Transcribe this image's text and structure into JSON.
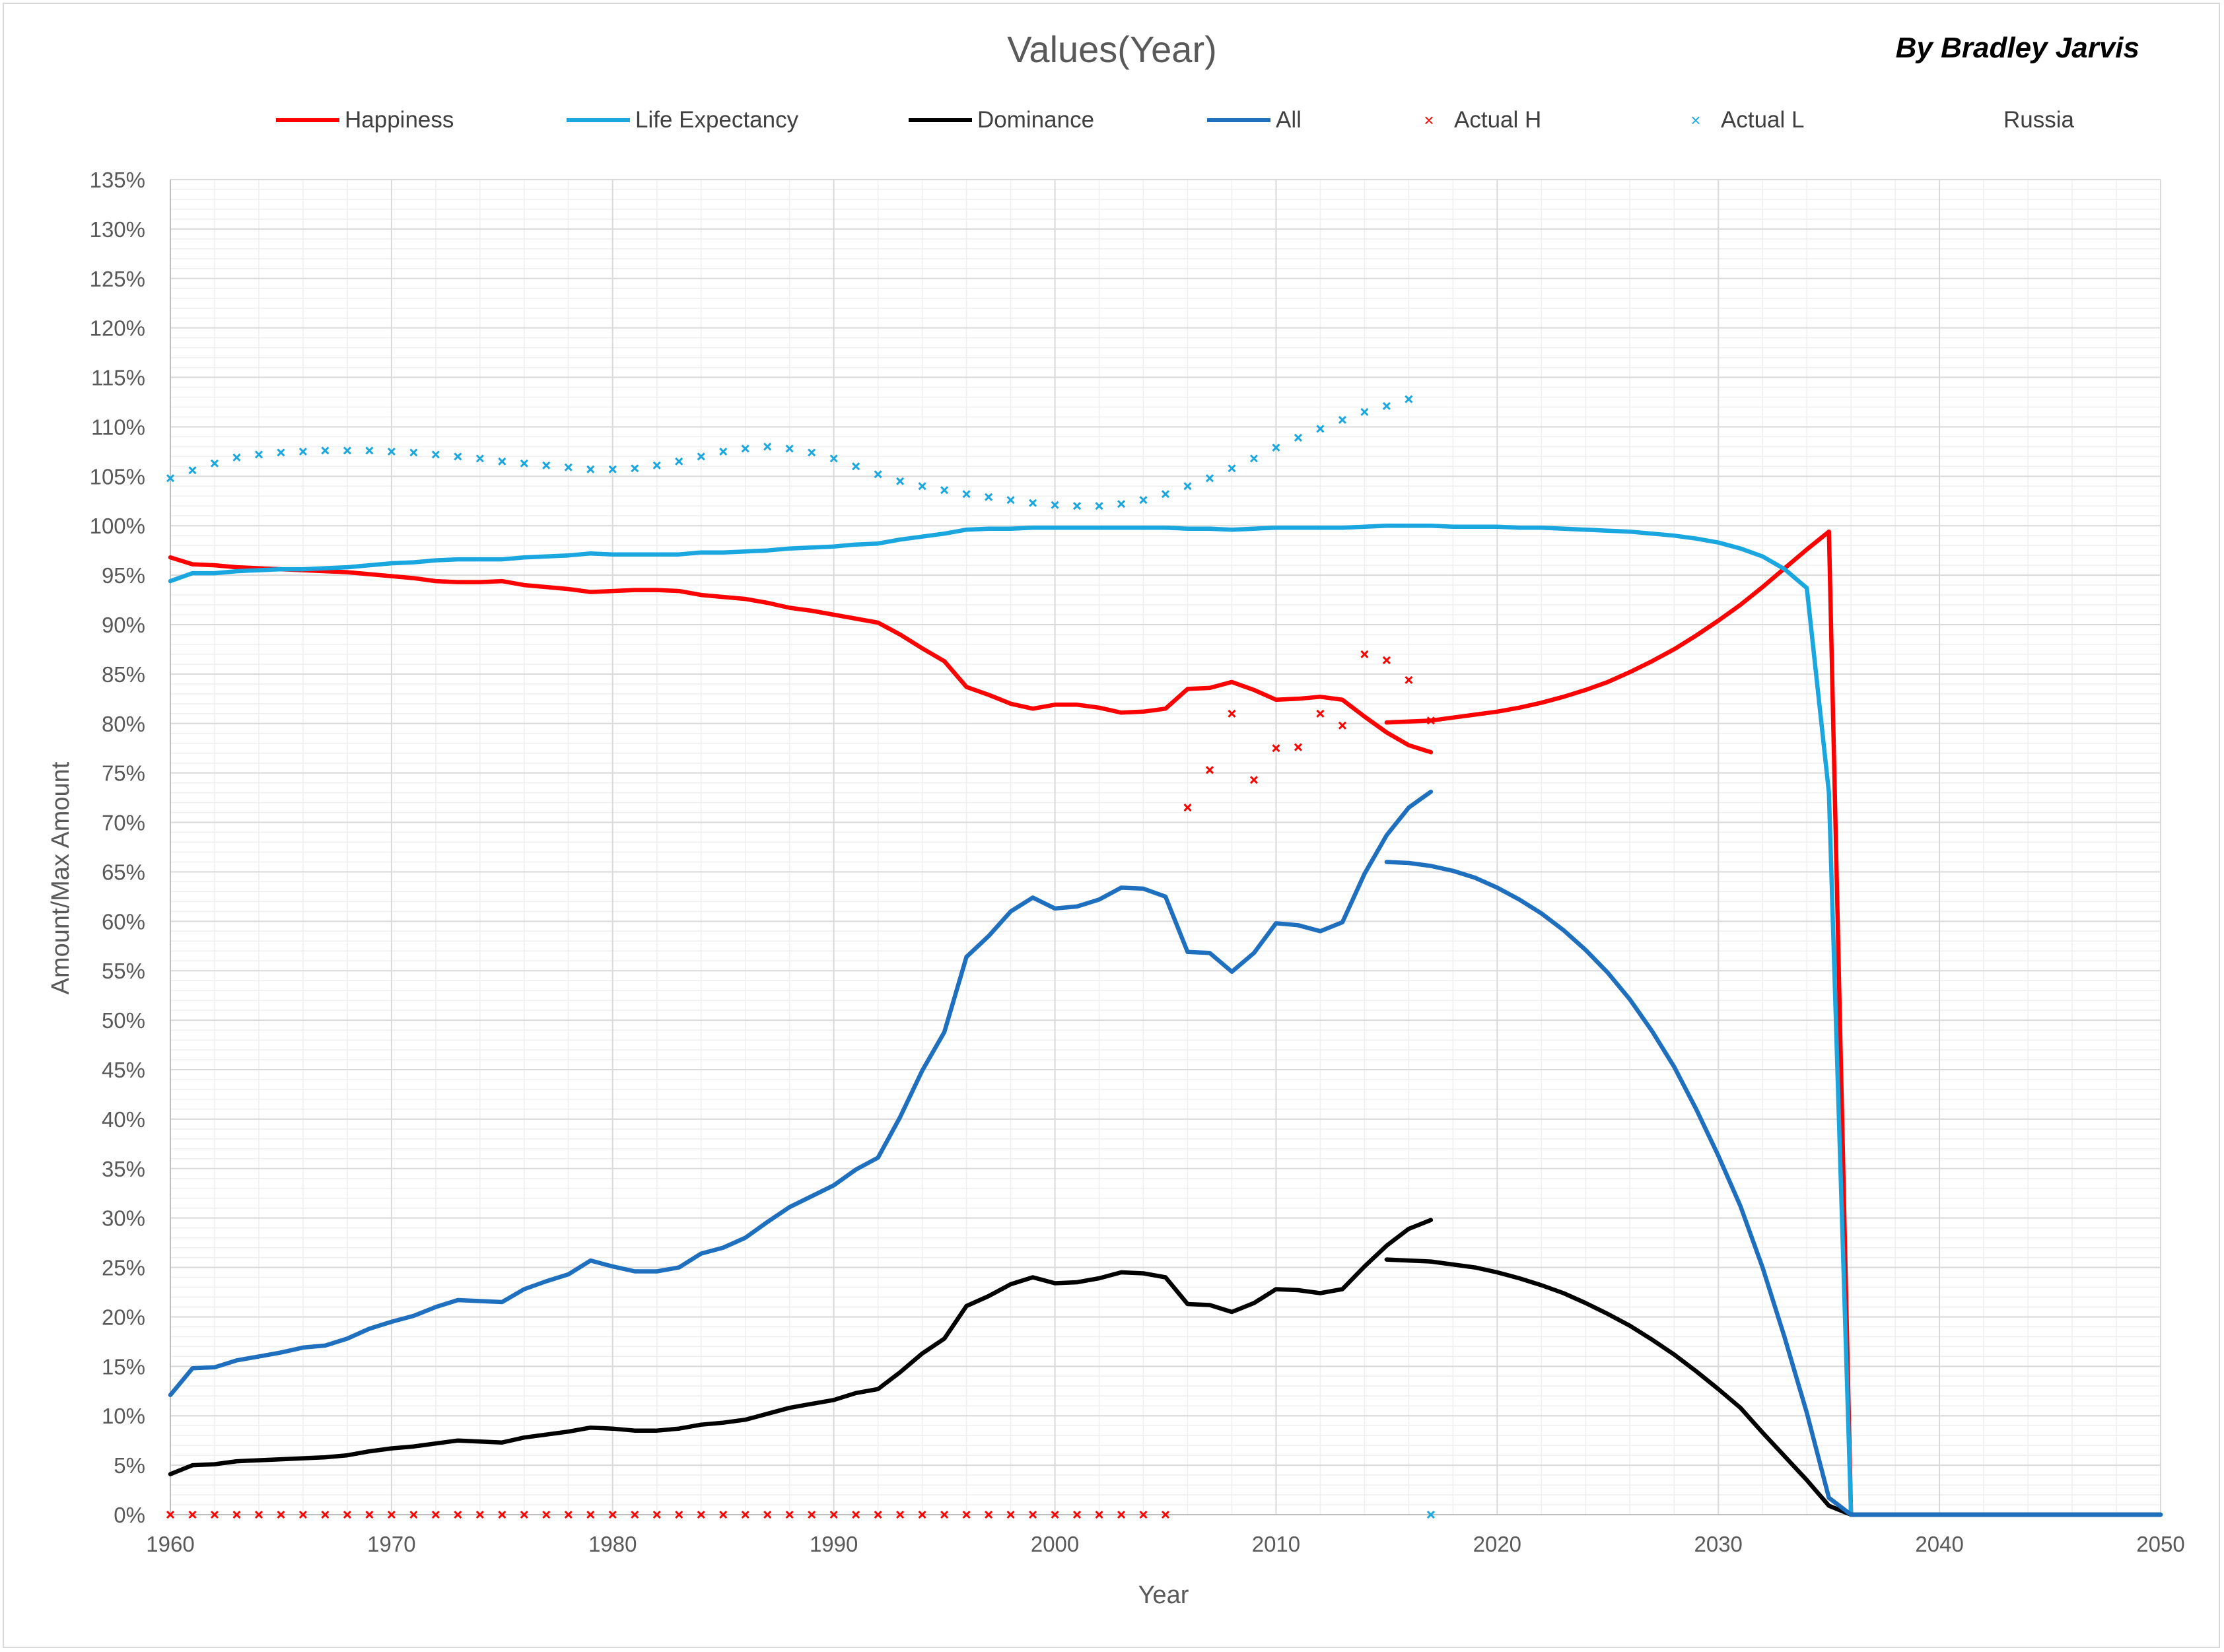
{
  "author": "By Bradley Jarvis",
  "chart_data": {
    "type": "line",
    "title": "Values(Year)",
    "xlabel": "Year",
    "ylabel": "Amount/Max Amount",
    "xlim": [
      1960,
      2050
    ],
    "ylim": [
      0,
      135
    ],
    "y_unit": "%",
    "xticks": [
      1960,
      1970,
      1980,
      1990,
      2000,
      2010,
      2020,
      2030,
      2040,
      2050
    ],
    "yticks": [
      0,
      5,
      10,
      15,
      20,
      25,
      30,
      35,
      40,
      45,
      50,
      55,
      60,
      65,
      70,
      75,
      80,
      85,
      90,
      95,
      100,
      105,
      110,
      115,
      120,
      125,
      130,
      135
    ],
    "grid": true,
    "legend_position": "top",
    "colors": {
      "happiness": "#ff0000",
      "life": "#1aa7e0",
      "dominance": "#000000",
      "all": "#1f6fbf"
    },
    "legend": [
      {
        "label": "Happiness",
        "kind": "line",
        "color": "#ff0000"
      },
      {
        "label": "Life Expectancy",
        "kind": "line",
        "color": "#1aa7e0"
      },
      {
        "label": "Dominance",
        "kind": "line",
        "color": "#000000"
      },
      {
        "label": "All",
        "kind": "line",
        "color": "#1f6fbf"
      },
      {
        "label": "Actual H",
        "kind": "marker",
        "color": "#ff0000"
      },
      {
        "label": "Actual L",
        "kind": "marker",
        "color": "#1aa7e0"
      },
      {
        "label": "Russia",
        "kind": "none",
        "color": "#ffffff"
      }
    ],
    "series": [
      {
        "name": "Happiness",
        "kind": "line",
        "color": "#ff0000",
        "x": [
          1960,
          1961,
          1962,
          1963,
          1964,
          1965,
          1966,
          1967,
          1968,
          1969,
          1970,
          1971,
          1972,
          1973,
          1974,
          1975,
          1976,
          1977,
          1978,
          1979,
          1980,
          1981,
          1982,
          1983,
          1984,
          1985,
          1986,
          1987,
          1988,
          1989,
          1990,
          1991,
          1992,
          1993,
          1994,
          1995,
          1996,
          1997,
          1998,
          1999,
          2000,
          2001,
          2002,
          2003,
          2004,
          2005,
          2006,
          2007,
          2008,
          2009,
          2010,
          2011,
          2012,
          2013,
          2014,
          2015,
          2016,
          2017
        ],
        "y": [
          96.8,
          96.1,
          96.0,
          95.8,
          95.7,
          95.6,
          95.5,
          95.4,
          95.3,
          95.1,
          94.9,
          94.7,
          94.4,
          94.3,
          94.3,
          94.4,
          94.0,
          93.8,
          93.6,
          93.3,
          93.4,
          93.5,
          93.5,
          93.4,
          93.0,
          92.8,
          92.6,
          92.2,
          91.7,
          91.4,
          91.0,
          90.6,
          90.2,
          89.0,
          87.6,
          86.3,
          83.7,
          82.9,
          82.0,
          81.5,
          81.9,
          81.9,
          81.6,
          81.1,
          81.2,
          81.5,
          83.5,
          83.6,
          84.2,
          83.4,
          82.4,
          82.5,
          82.7,
          82.4,
          80.7,
          79.1,
          77.8,
          77.1
        ]
      },
      {
        "name": "Happiness",
        "kind": "line",
        "color": "#ff0000",
        "x": [
          2015,
          2016,
          2017,
          2018,
          2019,
          2020,
          2021,
          2022,
          2023,
          2024,
          2025,
          2026,
          2027,
          2028,
          2029,
          2030,
          2031,
          2032,
          2033,
          2034,
          2035,
          2036
        ],
        "y": [
          80.1,
          80.2,
          80.3,
          80.6,
          80.9,
          81.2,
          81.6,
          82.1,
          82.7,
          83.4,
          84.2,
          85.2,
          86.3,
          87.5,
          88.9,
          90.4,
          92.0,
          93.8,
          95.7,
          97.6,
          99.4,
          0
        ]
      },
      {
        "name": "Life Expectancy",
        "kind": "line",
        "color": "#1aa7e0",
        "x": [
          1960,
          1961,
          1962,
          1963,
          1964,
          1965,
          1966,
          1967,
          1968,
          1969,
          1970,
          1971,
          1972,
          1973,
          1974,
          1975,
          1976,
          1977,
          1978,
          1979,
          1980,
          1981,
          1982,
          1983,
          1984,
          1985,
          1986,
          1987,
          1988,
          1989,
          1990,
          1991,
          1992,
          1993,
          1994,
          1995,
          1996,
          1997,
          1998,
          1999,
          2000,
          2001,
          2002,
          2003,
          2004,
          2005,
          2006,
          2007,
          2008,
          2009,
          2010,
          2011,
          2012,
          2013,
          2014,
          2015,
          2016,
          2017,
          2018,
          2019,
          2020,
          2021,
          2022,
          2023,
          2024,
          2025,
          2026,
          2027,
          2028,
          2029,
          2030,
          2031,
          2032,
          2033,
          2034,
          2035,
          2036,
          2050
        ],
        "y": [
          94.4,
          95.2,
          95.2,
          95.4,
          95.5,
          95.6,
          95.6,
          95.7,
          95.8,
          96.0,
          96.2,
          96.3,
          96.5,
          96.6,
          96.6,
          96.6,
          96.8,
          96.9,
          97.0,
          97.2,
          97.1,
          97.1,
          97.1,
          97.1,
          97.3,
          97.3,
          97.4,
          97.5,
          97.7,
          97.8,
          97.9,
          98.1,
          98.2,
          98.6,
          98.9,
          99.2,
          99.6,
          99.7,
          99.7,
          99.8,
          99.8,
          99.8,
          99.8,
          99.8,
          99.8,
          99.8,
          99.7,
          99.7,
          99.6,
          99.7,
          99.8,
          99.8,
          99.8,
          99.8,
          99.9,
          100.0,
          100.0,
          100.0,
          99.9,
          99.9,
          99.9,
          99.8,
          99.8,
          99.7,
          99.6,
          99.5,
          99.4,
          99.2,
          99.0,
          98.7,
          98.3,
          97.7,
          96.9,
          95.6,
          93.7,
          73.0,
          0,
          0
        ]
      },
      {
        "name": "Dominance",
        "kind": "line",
        "color": "#000000",
        "x": [
          1960,
          1961,
          1962,
          1963,
          1964,
          1965,
          1966,
          1967,
          1968,
          1969,
          1970,
          1971,
          1972,
          1973,
          1974,
          1975,
          1976,
          1977,
          1978,
          1979,
          1980,
          1981,
          1982,
          1983,
          1984,
          1985,
          1986,
          1987,
          1988,
          1989,
          1990,
          1991,
          1992,
          1993,
          1994,
          1995,
          1996,
          1997,
          1998,
          1999,
          2000,
          2001,
          2002,
          2003,
          2004,
          2005,
          2006,
          2007,
          2008,
          2009,
          2010,
          2011,
          2012,
          2013,
          2014,
          2015,
          2016,
          2017
        ],
        "y": [
          4.1,
          5.0,
          5.1,
          5.4,
          5.5,
          5.6,
          5.7,
          5.8,
          6.0,
          6.4,
          6.7,
          6.9,
          7.2,
          7.5,
          7.4,
          7.3,
          7.8,
          8.1,
          8.4,
          8.8,
          8.7,
          8.5,
          8.5,
          8.7,
          9.1,
          9.3,
          9.6,
          10.2,
          10.8,
          11.2,
          11.6,
          12.3,
          12.7,
          14.4,
          16.3,
          17.8,
          21.1,
          22.1,
          23.3,
          24.0,
          23.4,
          23.5,
          23.9,
          24.5,
          24.4,
          24.0,
          21.3,
          21.2,
          20.5,
          21.4,
          22.8,
          22.7,
          22.4,
          22.8,
          25.1,
          27.2,
          28.9,
          29.8
        ]
      },
      {
        "name": "Dominance",
        "kind": "line",
        "color": "#000000",
        "x": [
          2015,
          2016,
          2017,
          2018,
          2019,
          2020,
          2021,
          2022,
          2023,
          2024,
          2025,
          2026,
          2027,
          2028,
          2029,
          2030,
          2031,
          2032,
          2033,
          2034,
          2035,
          2036,
          2050
        ],
        "y": [
          25.8,
          25.7,
          25.6,
          25.3,
          25.0,
          24.5,
          23.9,
          23.2,
          22.4,
          21.4,
          20.3,
          19.1,
          17.7,
          16.2,
          14.5,
          12.7,
          10.8,
          8.3,
          5.9,
          3.5,
          0.9,
          0,
          0
        ]
      },
      {
        "name": "All",
        "kind": "line",
        "color": "#1f6fbf",
        "x": [
          1960,
          1961,
          1962,
          1963,
          1964,
          1965,
          1966,
          1967,
          1968,
          1969,
          1970,
          1971,
          1972,
          1973,
          1974,
          1975,
          1976,
          1977,
          1978,
          1979,
          1980,
          1981,
          1982,
          1983,
          1984,
          1985,
          1986,
          1987,
          1988,
          1989,
          1990,
          1991,
          1992,
          1993,
          1994,
          1995,
          1996,
          1997,
          1998,
          1999,
          2000,
          2001,
          2002,
          2003,
          2004,
          2005,
          2006,
          2007,
          2008,
          2009,
          2010,
          2011,
          2012,
          2013,
          2014,
          2015,
          2016,
          2017
        ],
        "y": [
          12.1,
          14.8,
          14.9,
          15.6,
          16.0,
          16.4,
          16.9,
          17.1,
          17.8,
          18.8,
          19.5,
          20.1,
          21.0,
          21.7,
          21.6,
          21.5,
          22.8,
          23.6,
          24.3,
          25.7,
          25.1,
          24.6,
          24.6,
          25.0,
          26.4,
          27.0,
          28.0,
          29.6,
          31.1,
          32.2,
          33.3,
          34.9,
          36.1,
          40.2,
          44.9,
          48.8,
          56.4,
          58.5,
          61.0,
          62.4,
          61.3,
          61.5,
          62.2,
          63.4,
          63.3,
          62.5,
          56.9,
          56.8,
          54.9,
          56.8,
          59.8,
          59.6,
          59.0,
          59.9,
          64.8,
          68.7,
          71.5,
          73.1
        ]
      },
      {
        "name": "All",
        "kind": "line",
        "color": "#1f6fbf",
        "x": [
          2015,
          2016,
          2017,
          2018,
          2019,
          2020,
          2021,
          2022,
          2023,
          2024,
          2025,
          2026,
          2027,
          2028,
          2029,
          2030,
          2031,
          2032,
          2033,
          2034,
          2035,
          2036,
          2050
        ],
        "y": [
          66.0,
          65.9,
          65.6,
          65.1,
          64.4,
          63.4,
          62.2,
          60.8,
          59.1,
          57.1,
          54.8,
          52.1,
          48.9,
          45.3,
          41.0,
          36.3,
          31.2,
          25.0,
          17.9,
          10.3,
          1.7,
          0,
          0
        ]
      },
      {
        "name": "Actual H",
        "kind": "marker",
        "color": "#ff0000",
        "x": [
          1960,
          1961,
          1962,
          1963,
          1964,
          1965,
          1966,
          1967,
          1968,
          1969,
          1970,
          1971,
          1972,
          1973,
          1974,
          1975,
          1976,
          1977,
          1978,
          1979,
          1980,
          1981,
          1982,
          1983,
          1984,
          1985,
          1986,
          1987,
          1988,
          1989,
          1990,
          1991,
          1992,
          1993,
          1994,
          1995,
          1996,
          1997,
          1998,
          1999,
          2000,
          2001,
          2002,
          2003,
          2004,
          2005,
          2006,
          2007,
          2008,
          2009,
          2010,
          2011,
          2012,
          2013,
          2014,
          2015,
          2016,
          2017
        ],
        "y": [
          0,
          0,
          0,
          0,
          0,
          0,
          0,
          0,
          0,
          0,
          0,
          0,
          0,
          0,
          0,
          0,
          0,
          0,
          0,
          0,
          0,
          0,
          0,
          0,
          0,
          0,
          0,
          0,
          0,
          0,
          0,
          0,
          0,
          0,
          0,
          0,
          0,
          0,
          0,
          0,
          0,
          0,
          0,
          0,
          0,
          0,
          71.5,
          75.3,
          81.0,
          74.3,
          77.5,
          77.6,
          81.0,
          79.8,
          87.0,
          86.4,
          84.4,
          80.3
        ]
      },
      {
        "name": "Actual L",
        "kind": "marker",
        "color": "#1aa7e0",
        "x": [
          1960,
          1961,
          1962,
          1963,
          1964,
          1965,
          1966,
          1967,
          1968,
          1969,
          1970,
          1971,
          1972,
          1973,
          1974,
          1975,
          1976,
          1977,
          1978,
          1979,
          1980,
          1981,
          1982,
          1983,
          1984,
          1985,
          1986,
          1987,
          1988,
          1989,
          1990,
          1991,
          1992,
          1993,
          1994,
          1995,
          1996,
          1997,
          1998,
          1999,
          2000,
          2001,
          2002,
          2003,
          2004,
          2005,
          2006,
          2007,
          2008,
          2009,
          2010,
          2011,
          2012,
          2013,
          2014,
          2015,
          2016,
          2017
        ],
        "y": [
          104.8,
          105.6,
          106.3,
          106.9,
          107.2,
          107.4,
          107.5,
          107.6,
          107.6,
          107.6,
          107.5,
          107.4,
          107.2,
          107.0,
          106.8,
          106.5,
          106.3,
          106.1,
          105.9,
          105.7,
          105.7,
          105.8,
          106.1,
          106.5,
          107.0,
          107.5,
          107.8,
          108.0,
          107.8,
          107.4,
          106.8,
          106.0,
          105.2,
          104.5,
          104.0,
          103.6,
          103.2,
          102.9,
          102.6,
          102.3,
          102.1,
          102.0,
          102.0,
          102.2,
          102.6,
          103.2,
          104.0,
          104.8,
          105.8,
          106.8,
          107.9,
          108.9,
          109.8,
          110.7,
          111.5,
          112.1,
          112.8,
          0
        ]
      }
    ]
  }
}
